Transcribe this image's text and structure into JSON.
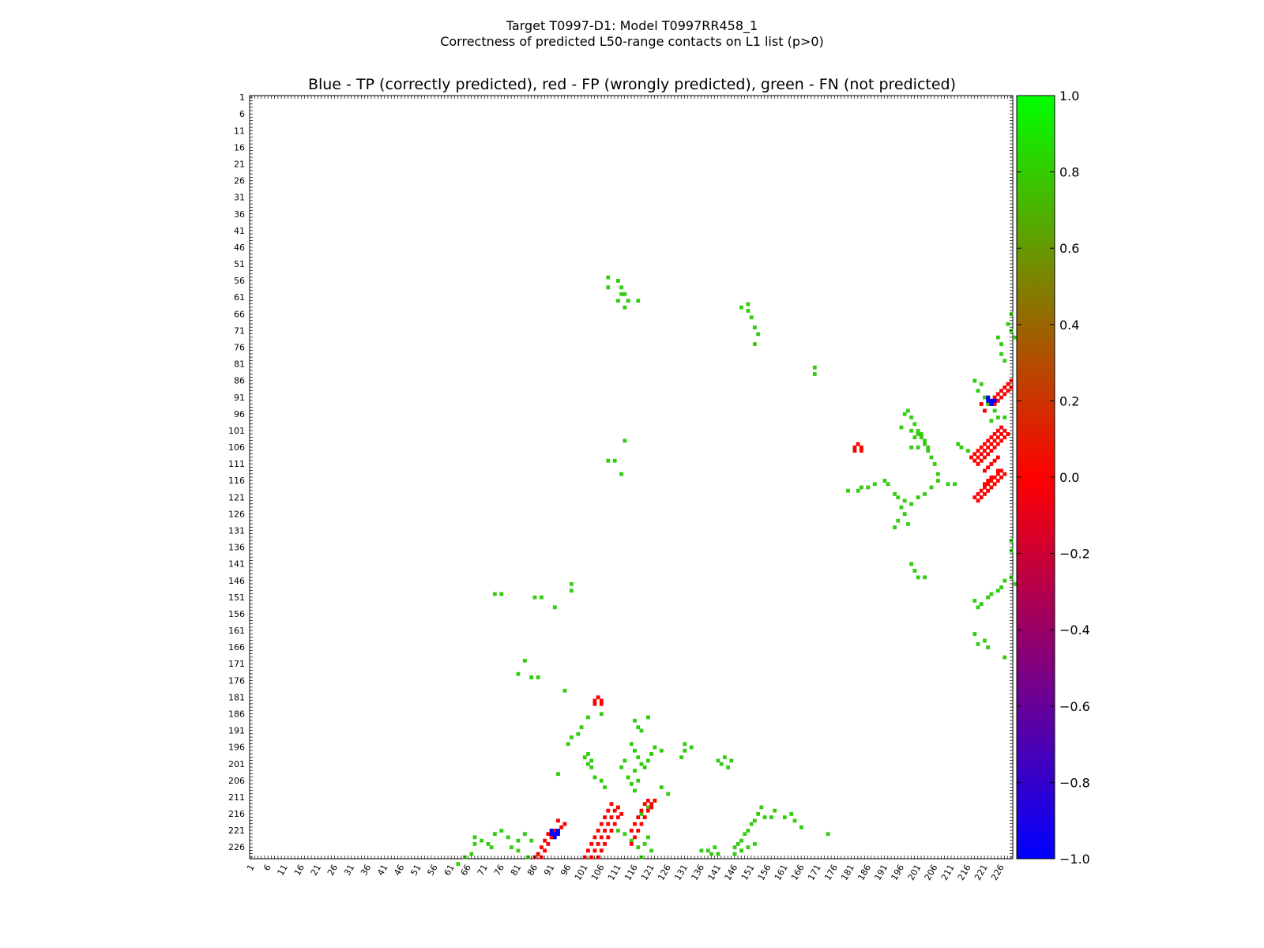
{
  "figure": {
    "title_line1": "Target T0997-D1: Model T0997RR458_1",
    "title_line2": "Correctness of predicted L50-range contacts on L1 list (p>0)"
  },
  "chart_data": {
    "type": "heatmap",
    "title": "Blue - TP (correctly predicted), red - FP (wrongly predicted), green - FN (not predicted)",
    "xlabel": "",
    "ylabel": "",
    "xlim": [
      1,
      229
    ],
    "ylim": [
      1,
      229
    ],
    "y_axis_direction": "top-to-bottom",
    "tick_labels": [
      "1",
      "6",
      "11",
      "16",
      "21",
      "26",
      "31",
      "36",
      "41",
      "46",
      "51",
      "56",
      "61",
      "66",
      "71",
      "76",
      "81",
      "86",
      "91",
      "96",
      "101",
      "106",
      "111",
      "116",
      "121",
      "126",
      "131",
      "136",
      "141",
      "146",
      "151",
      "156",
      "161",
      "166",
      "171",
      "176",
      "181",
      "186",
      "191",
      "196",
      "201",
      "206",
      "211",
      "216",
      "221",
      "226"
    ],
    "colorbar": {
      "min": -1.0,
      "max": 1.0,
      "tick_labels": [
        "1.0",
        "0.8",
        "0.6",
        "0.4",
        "0.2",
        "0.0",
        "−0.2",
        "−0.4",
        "−0.6",
        "−0.8",
        "−1.0"
      ],
      "colors": {
        "low": "#0000ff",
        "mid": "#ff0000",
        "high": "#00ff00"
      }
    },
    "colors": {
      "TP": "#0000ff",
      "FP": "#ff0000",
      "FN": "#33cc11"
    },
    "FN": [
      [
        111,
        56
      ],
      [
        112,
        58
      ],
      [
        113,
        60
      ],
      [
        114,
        62
      ],
      [
        108,
        55
      ],
      [
        108,
        58
      ],
      [
        117,
        62
      ],
      [
        112,
        60
      ],
      [
        111,
        62
      ],
      [
        113,
        64
      ],
      [
        108,
        110
      ],
      [
        110,
        110
      ],
      [
        113,
        104
      ],
      [
        112,
        114
      ],
      [
        74,
        150
      ],
      [
        76,
        150
      ],
      [
        86,
        151
      ],
      [
        88,
        151
      ],
      [
        92,
        154
      ],
      [
        95,
        179
      ],
      [
        81,
        174
      ],
      [
        85,
        175
      ],
      [
        87,
        175
      ],
      [
        83,
        170
      ],
      [
        97,
        147
      ],
      [
        97,
        149
      ],
      [
        93,
        204
      ],
      [
        101,
        199
      ],
      [
        102,
        198
      ],
      [
        103,
        200
      ],
      [
        102,
        201
      ],
      [
        103,
        202
      ],
      [
        104,
        205
      ],
      [
        106,
        206
      ],
      [
        107,
        208
      ],
      [
        68,
        223
      ],
      [
        68,
        225
      ],
      [
        70,
        224
      ],
      [
        72,
        225
      ],
      [
        74,
        222
      ],
      [
        76,
        221
      ],
      [
        78,
        223
      ],
      [
        81,
        224
      ],
      [
        83,
        222
      ],
      [
        85,
        224
      ],
      [
        63,
        231
      ],
      [
        65,
        229
      ],
      [
        67,
        228
      ],
      [
        73,
        226
      ],
      [
        79,
        226
      ],
      [
        81,
        227
      ],
      [
        84,
        229
      ],
      [
        86,
        229
      ],
      [
        111,
        221
      ],
      [
        113,
        222
      ],
      [
        115,
        224
      ],
      [
        117,
        226
      ],
      [
        119,
        225
      ],
      [
        120,
        223
      ],
      [
        121,
        227
      ],
      [
        118,
        229
      ],
      [
        118,
        216
      ],
      [
        119,
        217
      ],
      [
        120,
        214
      ],
      [
        122,
        212
      ],
      [
        126,
        210
      ],
      [
        124,
        208
      ],
      [
        116,
        203
      ],
      [
        113,
        200
      ],
      [
        112,
        202
      ],
      [
        150,
        63
      ],
      [
        150,
        65
      ],
      [
        148,
        64
      ],
      [
        151,
        67
      ],
      [
        152,
        70
      ],
      [
        153,
        72
      ],
      [
        152,
        75
      ],
      [
        170,
        82
      ],
      [
        170,
        84
      ],
      [
        198,
        95
      ],
      [
        199,
        97
      ],
      [
        200,
        99
      ],
      [
        201,
        101
      ],
      [
        202,
        103
      ],
      [
        203,
        105
      ],
      [
        204,
        107
      ],
      [
        205,
        109
      ],
      [
        206,
        111
      ],
      [
        207,
        114
      ],
      [
        180,
        119
      ],
      [
        183,
        119
      ],
      [
        184,
        118
      ],
      [
        186,
        118
      ],
      [
        188,
        117
      ],
      [
        191,
        116
      ],
      [
        192,
        117
      ],
      [
        194,
        120
      ],
      [
        195,
        121
      ],
      [
        197,
        122
      ],
      [
        199,
        123
      ],
      [
        201,
        121
      ],
      [
        203,
        120
      ],
      [
        205,
        118
      ],
      [
        207,
        116
      ],
      [
        210,
        117
      ],
      [
        212,
        117
      ],
      [
        196,
        124
      ],
      [
        197,
        126
      ],
      [
        194,
        130
      ],
      [
        195,
        128
      ],
      [
        198,
        129
      ],
      [
        199,
        141
      ],
      [
        200,
        143
      ],
      [
        201,
        145
      ],
      [
        203,
        145
      ],
      [
        196,
        100
      ],
      [
        199,
        101
      ],
      [
        201,
        102
      ],
      [
        202,
        102
      ],
      [
        203,
        104
      ],
      [
        204,
        106
      ],
      [
        200,
        103
      ],
      [
        197,
        96
      ],
      [
        199,
        106
      ],
      [
        201,
        106
      ],
      [
        213,
        105
      ],
      [
        214,
        106
      ],
      [
        216,
        107
      ],
      [
        218,
        86
      ],
      [
        220,
        87
      ],
      [
        219,
        89
      ],
      [
        221,
        91
      ],
      [
        222,
        93
      ],
      [
        224,
        95
      ],
      [
        225,
        97
      ],
      [
        227,
        97
      ],
      [
        223,
        98
      ],
      [
        225,
        73
      ],
      [
        226,
        75
      ],
      [
        226,
        78
      ],
      [
        227,
        80
      ],
      [
        228,
        69
      ],
      [
        229,
        71
      ],
      [
        229,
        66
      ],
      [
        230,
        73
      ],
      [
        218,
        152
      ],
      [
        219,
        154
      ],
      [
        220,
        153
      ],
      [
        222,
        151
      ],
      [
        223,
        150
      ],
      [
        225,
        149
      ],
      [
        226,
        148
      ],
      [
        227,
        146
      ],
      [
        229,
        145
      ],
      [
        230,
        147
      ],
      [
        218,
        162
      ],
      [
        219,
        165
      ],
      [
        221,
        164
      ],
      [
        222,
        166
      ],
      [
        227,
        169
      ],
      [
        229,
        134
      ],
      [
        229,
        137
      ],
      [
        96,
        195
      ],
      [
        97,
        193
      ],
      [
        99,
        192
      ],
      [
        100,
        190
      ],
      [
        102,
        187
      ],
      [
        106,
        186
      ],
      [
        116,
        188
      ],
      [
        117,
        190
      ],
      [
        118,
        191
      ],
      [
        120,
        187
      ],
      [
        115,
        195
      ],
      [
        116,
        197
      ],
      [
        117,
        199
      ],
      [
        118,
        201
      ],
      [
        119,
        202
      ],
      [
        120,
        200
      ],
      [
        121,
        198
      ],
      [
        122,
        196
      ],
      [
        124,
        197
      ],
      [
        114,
        205
      ],
      [
        115,
        207
      ],
      [
        116,
        209
      ],
      [
        117,
        206
      ],
      [
        131,
        197
      ],
      [
        131,
        195
      ],
      [
        133,
        196
      ],
      [
        130,
        199
      ],
      [
        141,
        200
      ],
      [
        142,
        201
      ],
      [
        143,
        199
      ],
      [
        144,
        202
      ],
      [
        145,
        200
      ],
      [
        146,
        226
      ],
      [
        147,
        225
      ],
      [
        148,
        224
      ],
      [
        149,
        222
      ],
      [
        150,
        221
      ],
      [
        151,
        219
      ],
      [
        152,
        218
      ],
      [
        153,
        216
      ],
      [
        154,
        214
      ],
      [
        155,
        217
      ],
      [
        146,
        228
      ],
      [
        148,
        227
      ],
      [
        150,
        226
      ],
      [
        152,
        225
      ],
      [
        157,
        217
      ],
      [
        158,
        215
      ],
      [
        161,
        217
      ],
      [
        163,
        216
      ],
      [
        164,
        218
      ],
      [
        166,
        220
      ],
      [
        174,
        222
      ],
      [
        136,
        227
      ],
      [
        138,
        227
      ],
      [
        139,
        228
      ],
      [
        140,
        226
      ],
      [
        141,
        228
      ]
    ],
    "FP": [
      [
        88,
        229
      ],
      [
        89,
        227
      ],
      [
        90,
        225
      ],
      [
        91,
        223
      ],
      [
        92,
        221
      ],
      [
        94,
        220
      ],
      [
        95,
        219
      ],
      [
        93,
        218
      ],
      [
        86,
        229
      ],
      [
        87,
        228
      ],
      [
        88,
        226
      ],
      [
        89,
        224
      ],
      [
        90,
        222
      ],
      [
        101,
        229
      ],
      [
        102,
        227
      ],
      [
        103,
        225
      ],
      [
        104,
        223
      ],
      [
        105,
        221
      ],
      [
        106,
        219
      ],
      [
        107,
        217
      ],
      [
        108,
        215
      ],
      [
        109,
        213
      ],
      [
        103,
        229
      ],
      [
        104,
        227
      ],
      [
        105,
        225
      ],
      [
        106,
        223
      ],
      [
        107,
        221
      ],
      [
        108,
        219
      ],
      [
        109,
        217
      ],
      [
        110,
        215
      ],
      [
        111,
        214
      ],
      [
        105,
        229
      ],
      [
        106,
        227
      ],
      [
        107,
        225
      ],
      [
        108,
        223
      ],
      [
        109,
        221
      ],
      [
        110,
        219
      ],
      [
        111,
        217
      ],
      [
        112,
        216
      ],
      [
        115,
        221
      ],
      [
        116,
        219
      ],
      [
        117,
        217
      ],
      [
        118,
        215
      ],
      [
        119,
        213
      ],
      [
        120,
        212
      ],
      [
        121,
        214
      ],
      [
        116,
        223
      ],
      [
        117,
        221
      ],
      [
        118,
        219
      ],
      [
        119,
        217
      ],
      [
        120,
        215
      ],
      [
        121,
        213
      ],
      [
        122,
        212
      ],
      [
        115,
        225
      ],
      [
        104,
        182
      ],
      [
        105,
        181
      ],
      [
        106,
        182
      ],
      [
        104,
        183
      ],
      [
        106,
        183
      ],
      [
        182,
        106
      ],
      [
        183,
        105
      ],
      [
        184,
        106
      ],
      [
        182,
        107
      ],
      [
        184,
        107
      ],
      [
        217,
        109
      ],
      [
        218,
        108
      ],
      [
        219,
        107
      ],
      [
        220,
        106
      ],
      [
        221,
        105
      ],
      [
        222,
        104
      ],
      [
        223,
        103
      ],
      [
        224,
        102
      ],
      [
        225,
        101
      ],
      [
        226,
        100
      ],
      [
        218,
        110
      ],
      [
        219,
        109
      ],
      [
        220,
        108
      ],
      [
        221,
        107
      ],
      [
        222,
        106
      ],
      [
        223,
        105
      ],
      [
        224,
        104
      ],
      [
        225,
        103
      ],
      [
        226,
        102
      ],
      [
        227,
        101
      ],
      [
        219,
        111
      ],
      [
        220,
        110
      ],
      [
        221,
        109
      ],
      [
        222,
        108
      ],
      [
        223,
        107
      ],
      [
        224,
        106
      ],
      [
        225,
        105
      ],
      [
        226,
        104
      ],
      [
        227,
        103
      ],
      [
        228,
        102
      ],
      [
        221,
        113
      ],
      [
        222,
        112
      ],
      [
        223,
        111
      ],
      [
        224,
        110
      ],
      [
        225,
        109
      ],
      [
        218,
        121
      ],
      [
        219,
        120
      ],
      [
        220,
        119
      ],
      [
        221,
        118
      ],
      [
        222,
        117
      ],
      [
        223,
        116
      ],
      [
        224,
        115
      ],
      [
        225,
        114
      ],
      [
        226,
        113
      ],
      [
        227,
        114
      ],
      [
        219,
        122
      ],
      [
        220,
        121
      ],
      [
        221,
        120
      ],
      [
        222,
        119
      ],
      [
        223,
        118
      ],
      [
        224,
        117
      ],
      [
        225,
        116
      ],
      [
        226,
        115
      ],
      [
        221,
        117
      ],
      [
        222,
        116
      ],
      [
        223,
        115
      ],
      [
        225,
        113
      ],
      [
        220,
        93
      ],
      [
        221,
        95
      ],
      [
        223,
        92
      ],
      [
        224,
        91
      ],
      [
        225,
        90
      ],
      [
        226,
        89
      ],
      [
        227,
        88
      ],
      [
        228,
        87
      ],
      [
        229,
        86
      ],
      [
        224,
        93
      ],
      [
        225,
        92
      ],
      [
        226,
        91
      ],
      [
        227,
        90
      ],
      [
        228,
        89
      ],
      [
        229,
        88
      ]
    ],
    "TP": [
      [
        91,
        221
      ],
      [
        92,
        222
      ],
      [
        93,
        221
      ],
      [
        91,
        222
      ],
      [
        93,
        222
      ],
      [
        92,
        223
      ],
      [
        222,
        91
      ],
      [
        223,
        92
      ],
      [
        223,
        93
      ],
      [
        222,
        92
      ],
      [
        224,
        92
      ]
    ]
  }
}
